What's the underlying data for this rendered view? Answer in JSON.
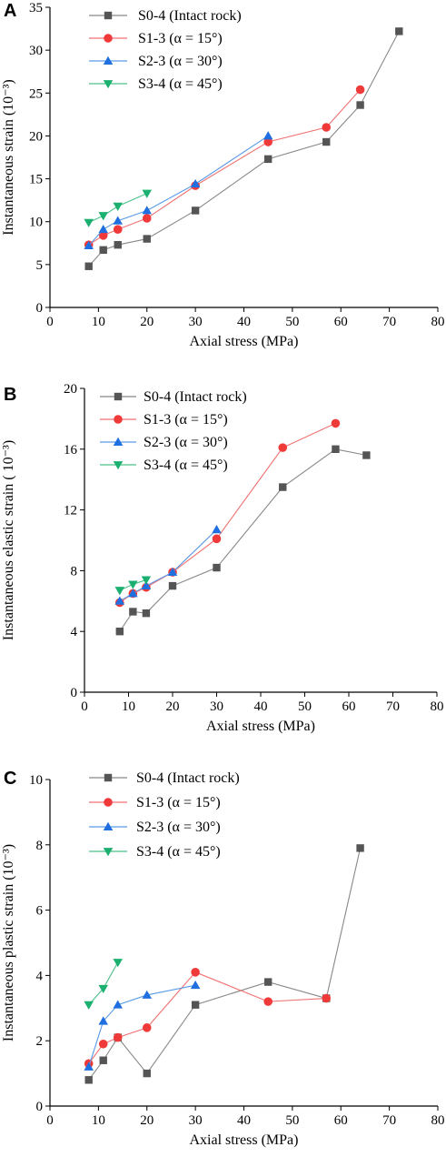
{
  "chart_data": [
    {
      "type": "line",
      "panel_label": "A",
      "xlabel": "Axial stress (MPa)",
      "ylabel": "Instantaneous strain (10⁻³)",
      "xlim": [
        0,
        80
      ],
      "ylim": [
        0,
        35
      ],
      "xticks": [
        0,
        10,
        20,
        30,
        40,
        50,
        60,
        70,
        80
      ],
      "yticks": [
        0,
        5,
        10,
        15,
        20,
        25,
        30,
        35
      ],
      "legend_position": "top-left",
      "series": [
        {
          "name": "S0-4 (Intact rock)",
          "marker": "square",
          "color": "#555555",
          "line_color": "#888888",
          "x": [
            8,
            11,
            14,
            20,
            30,
            45,
            57,
            64,
            72
          ],
          "y": [
            4.8,
            6.7,
            7.3,
            8.0,
            11.3,
            17.3,
            19.3,
            23.6,
            32.2
          ]
        },
        {
          "name": "S1-3 (α = 15°)",
          "marker": "circle",
          "color": "#f03a3a",
          "line_color": "#f07070",
          "x": [
            8,
            11,
            14,
            20,
            30,
            45,
            57,
            64
          ],
          "y": [
            7.3,
            8.4,
            9.1,
            10.4,
            14.2,
            19.3,
            21.0,
            25.4
          ]
        },
        {
          "name": "S2-3 (α = 30°)",
          "marker": "triangle-up",
          "color": "#1f6fe0",
          "line_color": "#5a9ae8",
          "x": [
            8,
            11,
            14,
            20,
            30,
            45
          ],
          "y": [
            7.2,
            9.1,
            10.1,
            11.3,
            14.4,
            20.0
          ]
        },
        {
          "name": "S3-4 (α = 45°)",
          "marker": "triangle-down",
          "color": "#1bb070",
          "line_color": "#4cc08a",
          "x": [
            8,
            11,
            14,
            20
          ],
          "y": [
            9.9,
            10.7,
            11.8,
            13.3
          ]
        }
      ]
    },
    {
      "type": "line",
      "panel_label": "B",
      "xlabel": "Axial stress (MPa)",
      "ylabel": "Instantaneous elastic strain ( 10⁻³)",
      "xlim": [
        0,
        80
      ],
      "ylim": [
        0,
        20
      ],
      "xticks": [
        0,
        10,
        20,
        30,
        40,
        50,
        60,
        70,
        80
      ],
      "yticks": [
        0,
        4,
        8,
        12,
        16,
        20
      ],
      "legend_position": "top-left",
      "series": [
        {
          "name": "S0-4 (Intact rock)",
          "marker": "square",
          "color": "#555555",
          "line_color": "#888888",
          "x": [
            8,
            11,
            14,
            20,
            30,
            45,
            57,
            64
          ],
          "y": [
            4.0,
            5.3,
            5.2,
            7.0,
            8.2,
            13.5,
            16.0,
            15.6
          ]
        },
        {
          "name": "S1-3 (α = 15°)",
          "marker": "circle",
          "color": "#f03a3a",
          "line_color": "#f07070",
          "x": [
            8,
            11,
            14,
            20,
            30,
            45,
            57
          ],
          "y": [
            5.9,
            6.5,
            6.9,
            7.9,
            10.1,
            16.1,
            17.7
          ]
        },
        {
          "name": "S2-3 (α = 30°)",
          "marker": "triangle-up",
          "color": "#1f6fe0",
          "line_color": "#5a9ae8",
          "x": [
            8,
            11,
            14,
            20,
            30
          ],
          "y": [
            6.0,
            6.5,
            7.0,
            7.9,
            10.7
          ]
        },
        {
          "name": "S3-4 (α = 45°)",
          "marker": "triangle-down",
          "color": "#1bb070",
          "line_color": "#4cc08a",
          "x": [
            8,
            11,
            14
          ],
          "y": [
            6.7,
            7.1,
            7.4
          ]
        }
      ]
    },
    {
      "type": "line",
      "panel_label": "C",
      "xlabel": "Axial stress (MPa)",
      "ylabel": "Instantaneous plastic strain (10⁻³)",
      "xlim": [
        0,
        80
      ],
      "ylim": [
        0,
        10
      ],
      "xticks": [
        0,
        10,
        20,
        30,
        40,
        50,
        60,
        70,
        80
      ],
      "yticks": [
        0,
        2,
        4,
        6,
        8,
        10
      ],
      "legend_position": "top-center",
      "series": [
        {
          "name": "S0-4 (Intact rock)",
          "marker": "square",
          "color": "#555555",
          "line_color": "#888888",
          "x": [
            8,
            11,
            14,
            20,
            30,
            45,
            57,
            64
          ],
          "y": [
            0.8,
            1.4,
            2.1,
            1.0,
            3.1,
            3.8,
            3.3,
            7.9
          ]
        },
        {
          "name": "S1-3 (α = 15°)",
          "marker": "circle",
          "color": "#f03a3a",
          "line_color": "#f07070",
          "x": [
            8,
            11,
            14,
            20,
            30,
            45,
            57
          ],
          "y": [
            1.3,
            1.9,
            2.1,
            2.4,
            4.1,
            3.2,
            3.3
          ]
        },
        {
          "name": "S2-3 (α = 30°)",
          "marker": "triangle-up",
          "color": "#1f6fe0",
          "line_color": "#5a9ae8",
          "x": [
            8,
            11,
            14,
            20,
            30
          ],
          "y": [
            1.2,
            2.6,
            3.1,
            3.4,
            3.7
          ]
        },
        {
          "name": "S3-4 (α = 45°)",
          "marker": "triangle-down",
          "color": "#1bb070",
          "line_color": "#4cc08a",
          "x": [
            8,
            11,
            14
          ],
          "y": [
            3.1,
            3.6,
            4.4
          ]
        }
      ]
    }
  ]
}
